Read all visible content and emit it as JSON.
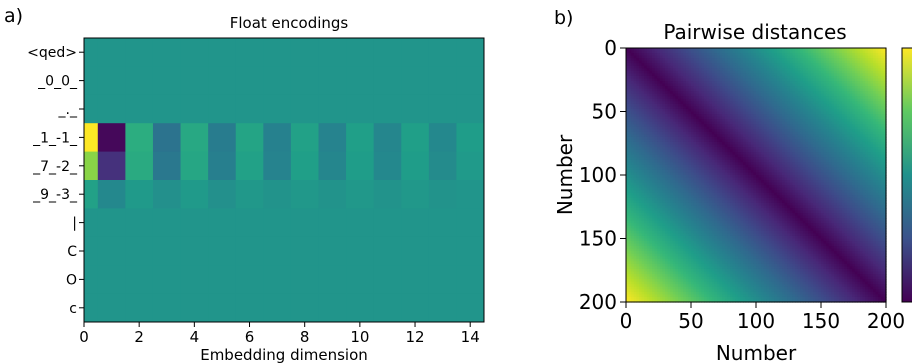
{
  "chart_data": [
    {
      "panel_label": "a)",
      "type": "heatmap",
      "title": "Float encodings",
      "xlabel": "Embedding dimension",
      "ylabel": "",
      "x_ticks": [
        "0",
        "2",
        "4",
        "6",
        "8",
        "10",
        "12",
        "14"
      ],
      "y_categories": [
        "<qed>",
        "_0_0_",
        "_._",
        "_1_-1_",
        "_7_-2_",
        "_9_-3_",
        "|",
        "C",
        "O",
        "c"
      ],
      "columns": 15,
      "rows": [
        {
          "token": "<qed>",
          "values": [
            0.52,
            0.52,
            0.52,
            0.52,
            0.52,
            0.52,
            0.52,
            0.52,
            0.52,
            0.52,
            0.52,
            0.52,
            0.52,
            0.52,
            0.52
          ]
        },
        {
          "token": "_0_0_",
          "values": [
            0.52,
            0.52,
            0.52,
            0.52,
            0.52,
            0.52,
            0.52,
            0.52,
            0.52,
            0.52,
            0.52,
            0.52,
            0.52,
            0.52,
            0.52
          ]
        },
        {
          "token": "_._",
          "values": [
            0.52,
            0.52,
            0.52,
            0.52,
            0.52,
            0.52,
            0.52,
            0.52,
            0.52,
            0.52,
            0.52,
            0.52,
            0.52,
            0.52,
            0.52
          ]
        },
        {
          "token": "_1_-1_",
          "values": [
            1.0,
            0.02,
            0.62,
            0.38,
            0.6,
            0.42,
            0.58,
            0.44,
            0.57,
            0.45,
            0.56,
            0.46,
            0.56,
            0.47,
            0.55
          ]
        },
        {
          "token": "_7_-2_",
          "values": [
            0.82,
            0.14,
            0.61,
            0.4,
            0.59,
            0.43,
            0.57,
            0.45,
            0.56,
            0.46,
            0.55,
            0.47,
            0.55,
            0.48,
            0.54
          ]
        },
        {
          "token": "_9_-3_",
          "values": [
            0.57,
            0.47,
            0.54,
            0.5,
            0.54,
            0.5,
            0.53,
            0.51,
            0.53,
            0.51,
            0.53,
            0.51,
            0.53,
            0.51,
            0.52
          ]
        },
        {
          "token": "|",
          "values": [
            0.52,
            0.52,
            0.52,
            0.52,
            0.52,
            0.52,
            0.52,
            0.52,
            0.52,
            0.52,
            0.52,
            0.52,
            0.52,
            0.52,
            0.52
          ]
        },
        {
          "token": "C",
          "values": [
            0.52,
            0.52,
            0.52,
            0.52,
            0.52,
            0.52,
            0.52,
            0.52,
            0.52,
            0.52,
            0.52,
            0.52,
            0.52,
            0.52,
            0.52
          ]
        },
        {
          "token": "O",
          "values": [
            0.52,
            0.52,
            0.52,
            0.52,
            0.52,
            0.52,
            0.52,
            0.52,
            0.52,
            0.52,
            0.52,
            0.52,
            0.52,
            0.52,
            0.52
          ]
        },
        {
          "token": "c",
          "values": [
            0.52,
            0.52,
            0.52,
            0.52,
            0.52,
            0.52,
            0.52,
            0.52,
            0.52,
            0.52,
            0.52,
            0.52,
            0.52,
            0.52,
            0.52
          ]
        }
      ],
      "colormap": "viridis"
    },
    {
      "panel_label": "b)",
      "type": "heatmap",
      "title": "Pairwise distances",
      "xlabel": "Number",
      "ylabel": "Number",
      "x_ticks": [
        "0",
        "50",
        "100",
        "150",
        "200"
      ],
      "y_ticks": [
        "0",
        "50",
        "100",
        "150",
        "200"
      ],
      "xlim": [
        0,
        200
      ],
      "ylim": [
        200,
        0
      ],
      "function": "abs(x - y)",
      "value_range": [
        0,
        200
      ],
      "colormap": "viridis",
      "colorbar": true
    }
  ]
}
